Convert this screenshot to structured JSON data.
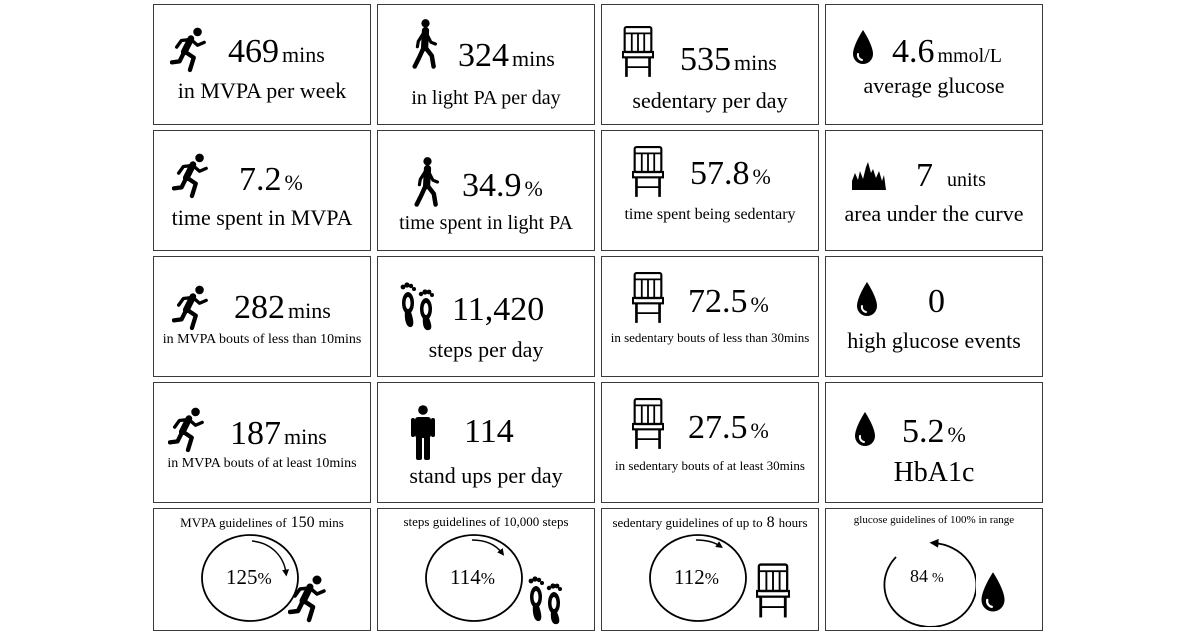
{
  "cards": {
    "mvpa_week": {
      "value": "469",
      "unit": "mins",
      "label": "in MVPA per week"
    },
    "light_day": {
      "value": "324",
      "unit": "mins",
      "label": "in light PA per day"
    },
    "sedentary_day": {
      "value": "535",
      "unit": "mins",
      "label": "sedentary per day"
    },
    "glucose_avg": {
      "value": "4.6",
      "unit": "mmol/L",
      "label": "average glucose"
    },
    "mvpa_pct": {
      "value": "7.2",
      "unit": "%",
      "label": "time spent in MVPA"
    },
    "light_pct": {
      "value": "34.9",
      "unit": "%",
      "label": "time spent in light PA"
    },
    "sedentary_pct": {
      "value": "57.8",
      "unit": "%",
      "label": "time spent being sedentary"
    },
    "auc": {
      "value": "7",
      "unit": "units",
      "label": "area under the curve"
    },
    "mvpa_short": {
      "value": "282",
      "unit": "mins",
      "label": "in MVPA bouts of less than 10mins"
    },
    "steps": {
      "value": "11,420",
      "label": "steps per day"
    },
    "sed_short": {
      "value": "72.5",
      "unit": "%",
      "label": "in sedentary bouts of less than 30mins"
    },
    "high_glucose": {
      "value": "0",
      "label": "high glucose events"
    },
    "mvpa_long": {
      "value": "187",
      "unit": "mins",
      "label": "in MVPA bouts of at least 10mins"
    },
    "standups": {
      "value": "114",
      "label": "stand ups per day"
    },
    "sed_long": {
      "value": "27.5",
      "unit": "%",
      "label": "in sedentary bouts of at least 30mins"
    },
    "hba1c": {
      "value": "5.2",
      "unit": "%",
      "label": "HbA1c"
    }
  },
  "guidelines": {
    "mvpa": {
      "title_prefix": "MVPA guidelines of",
      "title_value": "150",
      "title_suffix": "mins",
      "percent": "125",
      "symbol": "%"
    },
    "steps": {
      "title": "steps guidelines of 10,000 steps",
      "percent": "114",
      "symbol": "%"
    },
    "sedentary": {
      "title_prefix": "sedentary guidelines of up to",
      "title_value": "8",
      "title_suffix": "hours",
      "percent": "112",
      "symbol": "%"
    },
    "glucose": {
      "title": "glucose guidelines of 100% in range",
      "percent": "84",
      "symbol": "%"
    }
  },
  "icons": [
    "running-icon",
    "walking-icon",
    "chair-icon",
    "drop-icon",
    "glucose-curve-icon",
    "footprints-icon",
    "standing-person-icon"
  ]
}
